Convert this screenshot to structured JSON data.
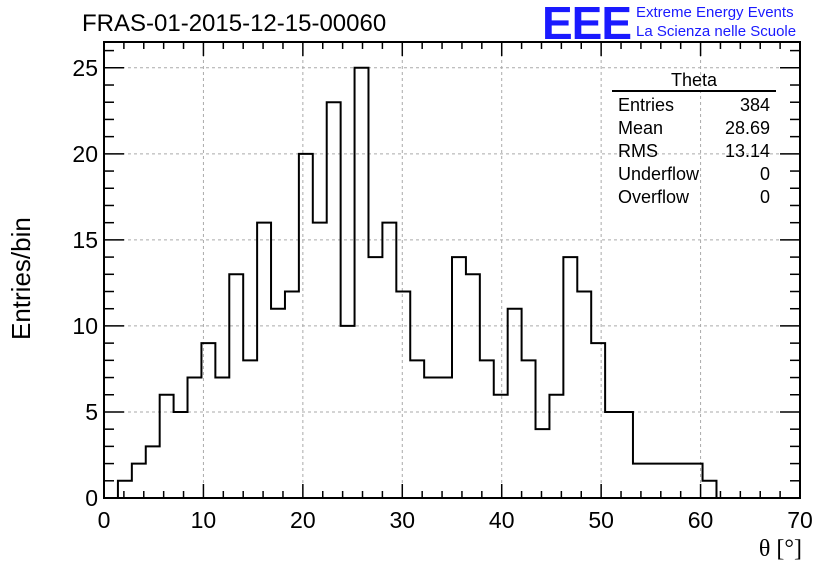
{
  "header": {
    "title": "FRAS-01-2015-12-15-00060",
    "logo_text": "EEE",
    "brand_line1": "Extreme Energy Events",
    "brand_line2": "La Scienza nelle Scuole",
    "brand_color": "#1a1aff"
  },
  "stats_box": {
    "name": "Theta",
    "rows": [
      {
        "label": "Entries",
        "value": "384"
      },
      {
        "label": "Mean",
        "value": "28.69"
      },
      {
        "label": "RMS",
        "value": "13.14"
      },
      {
        "label": "Underflow",
        "value": "0"
      },
      {
        "label": "Overflow",
        "value": "0"
      }
    ]
  },
  "chart_data": {
    "type": "histogram",
    "title": "FRAS-01-2015-12-15-00060",
    "xlabel": "θ [°]",
    "ylabel": "Entries/bin",
    "xlim": [
      0,
      70
    ],
    "ylim": [
      0,
      26.5
    ],
    "xticks": [
      0,
      10,
      20,
      30,
      40,
      50,
      60,
      70
    ],
    "yticks": [
      0,
      5,
      10,
      15,
      20,
      25
    ],
    "grid": true,
    "bin_width": 1.4,
    "bin_start": 1.4,
    "values": [
      1,
      2,
      3,
      6,
      5,
      7,
      9,
      7,
      13,
      8,
      16,
      11,
      12,
      20,
      16,
      23,
      10,
      25,
      14,
      16,
      12,
      8,
      7,
      7,
      14,
      13,
      8,
      6,
      11,
      8,
      4,
      6,
      14,
      12,
      9,
      5,
      5,
      2,
      2,
      2,
      2,
      2,
      1
    ]
  }
}
